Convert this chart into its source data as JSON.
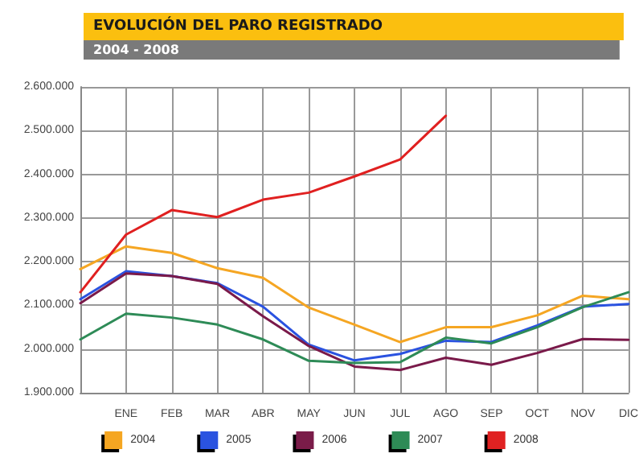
{
  "chart_data": {
    "type": "line",
    "title": "EVOLUCIÓN DEL PARO REGISTRADO",
    "subtitle": "2004 - 2008",
    "categories": [
      null,
      "ENE",
      "FEB",
      "MAR",
      "ABR",
      "MAY",
      "JUN",
      "JUL",
      "AGO",
      "SEP",
      "OCT",
      "NOV",
      "DIC"
    ],
    "series": [
      {
        "name": "2004",
        "color": "#f5a623",
        "values": [
          2183000,
          2235000,
          2220000,
          2185000,
          2163000,
          2095000,
          2056000,
          2016000,
          2050000,
          2050000,
          2077000,
          2122000,
          2114000
        ]
      },
      {
        "name": "2005",
        "color": "#2a52e0",
        "values": [
          2114000,
          2178000,
          2167000,
          2151000,
          2097000,
          2010000,
          1974000,
          1989000,
          2019000,
          2016000,
          2054000,
          2097000,
          2103000
        ]
      },
      {
        "name": "2006",
        "color": "#7a1a4a",
        "values": [
          2105000,
          2173000,
          2167000,
          2149000,
          2075000,
          2007000,
          1960000,
          1952000,
          1980000,
          1964000,
          1991000,
          2023000,
          2021000
        ]
      },
      {
        "name": "2007",
        "color": "#2e8b57",
        "values": [
          2022000,
          2081000,
          2072000,
          2056000,
          2022000,
          1973000,
          1968000,
          1970000,
          2026000,
          2013000,
          2050000,
          2096000,
          2130000
        ]
      },
      {
        "name": "2008",
        "color": "#e02020",
        "values": [
          2130000,
          2262000,
          2318000,
          2302000,
          2342000,
          2358000,
          2395000,
          2434000,
          2534000,
          null,
          null,
          null,
          null
        ]
      }
    ],
    "ylim": [
      1900000,
      2600000
    ],
    "yticks": [
      {
        "value": 1900000,
        "label": "1.900.000"
      },
      {
        "value": 2000000,
        "label": "2.000.000"
      },
      {
        "value": 2100000,
        "label": "2.100.000"
      },
      {
        "value": 2200000,
        "label": "2.200.000"
      },
      {
        "value": 2300000,
        "label": "2.300.000"
      },
      {
        "value": 2400000,
        "label": "2.400.000"
      },
      {
        "value": 2500000,
        "label": "2.500.000"
      },
      {
        "value": 2600000,
        "label": "2.600.000"
      }
    ],
    "grid": true,
    "legend": "bottom",
    "marker": "none",
    "line_style": "solid"
  }
}
